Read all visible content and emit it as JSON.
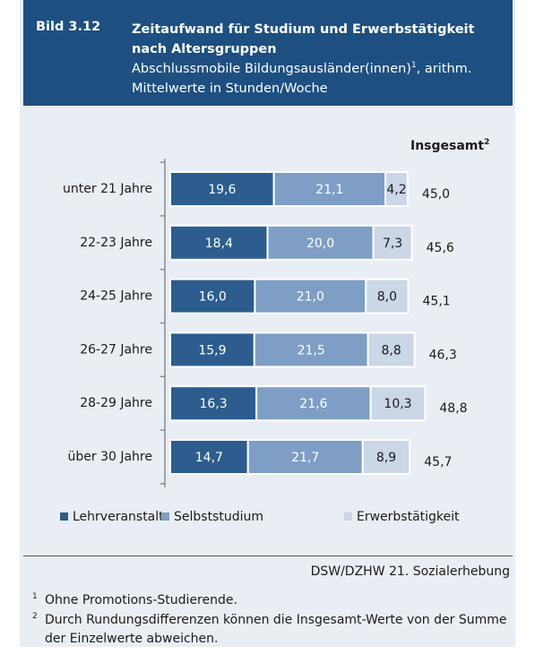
{
  "chart_data": {
    "type": "bar",
    "orientation": "horizontal",
    "stacked": true,
    "figure_label": "Bild 3.12",
    "title": "Zeitaufwand für Studium und Erwerbstätigkeit nach Altersgruppen",
    "subtitle": [
      "Abschlussmobile Bildungsausländer(innen)",
      "1",
      ", arithm. Mittelwerte in Stunden/Woche"
    ],
    "categories": [
      "unter 21 Jahre",
      "22-23 Jahre",
      "24-25 Jahre",
      "26-27 Jahre",
      "28-29 Jahre",
      "über 30 Jahre"
    ],
    "series": [
      {
        "name": "Lehrveranstalt.",
        "color": "#2c5d8e",
        "label_color": "#ffffff",
        "values": [
          19.6,
          18.4,
          16.0,
          15.9,
          16.3,
          14.7
        ],
        "value_labels": [
          "19,6",
          "18,4",
          "16,0",
          "15,9",
          "16,3",
          "14,7"
        ]
      },
      {
        "name": "Selbststudium",
        "color": "#7e9ec5",
        "label_color": "#ffffff",
        "values": [
          21.1,
          20.0,
          21.0,
          21.5,
          21.6,
          21.7
        ],
        "value_labels": [
          "21,1",
          "20,0",
          "21,0",
          "21,5",
          "21,6",
          "21,7"
        ]
      },
      {
        "name": "Erwerbstätigkeit",
        "color": "#cbd6e6",
        "label_color": "#1a1a1a",
        "values": [
          4.2,
          7.3,
          8.0,
          8.8,
          10.3,
          8.9
        ],
        "value_labels": [
          "4,2",
          "7,3",
          "8,0",
          "8,8",
          "10,3",
          "8,9"
        ]
      }
    ],
    "totals_header": "Insgesamt",
    "totals_header_note": "2",
    "totals": [
      45.0,
      45.6,
      45.1,
      46.3,
      48.8,
      45.7
    ],
    "totals_labels": [
      "45,0",
      "45,6",
      "45,1",
      "46,3",
      "48,8",
      "45,7"
    ],
    "source": "DSW/DZHW 21. Sozialerhebung",
    "footnotes": [
      {
        "mark": "1",
        "text": "Ohne Promotions-Studierende."
      },
      {
        "mark": "2",
        "text": "Durch Rundungsdifferenzen können die Insgesamt-Werte von der Summe der Einzelwerte abweichen."
      }
    ]
  }
}
